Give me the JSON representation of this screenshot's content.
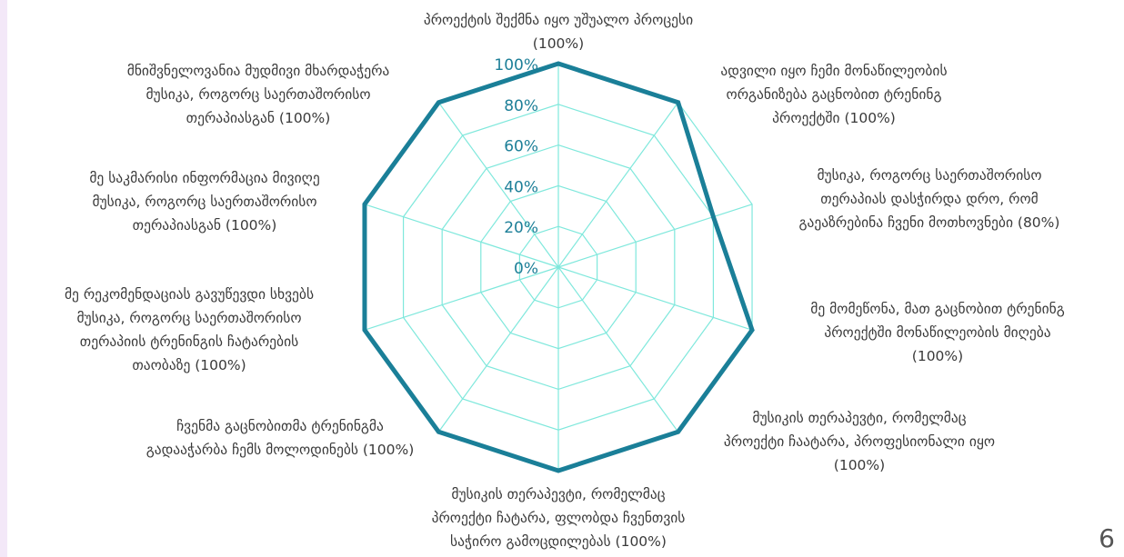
{
  "chart_data": {
    "type": "radar",
    "title": "",
    "rlim": [
      0,
      100
    ],
    "ticks": [
      "0%",
      "20%",
      "40%",
      "60%",
      "80%",
      "100%"
    ],
    "tick_values": [
      0,
      20,
      40,
      60,
      80,
      100
    ],
    "grid": true,
    "axes": [
      {
        "lines": [
          "პროექტის შექმნა იყო უშუალო პროცესი",
          "(100%)"
        ],
        "value": 100
      },
      {
        "lines": [
          "ადვილი იყო ჩემი მონაწილეობის",
          "ორგანიზება გაცნობით ტრენინგ",
          "პროექტში (100%)"
        ],
        "value": 100
      },
      {
        "lines": [
          "მუსიკა, როგორც საერთაშორისო",
          "თერაპიას დასჭირდა დრო, რომ",
          "გაეაზრებინა ჩვენი მოთხოვნები (80%)"
        ],
        "value": 80
      },
      {
        "lines": [
          "მე მომეწონა, მათ გაცნობით ტრენინგ",
          "პროექტში მონაწილეობის მიღება",
          "(100%)"
        ],
        "value": 100
      },
      {
        "lines": [
          "მუსიკის თერაპევტი, რომელმაც",
          "პროექტი ჩაატარა, პროფესიონალი იყო",
          "(100%)"
        ],
        "value": 100
      },
      {
        "lines": [
          "მუსიკის თერაპევტი, რომელმაც",
          "პროექტი ჩატარა, ფლობდა ჩვენთვის",
          "საჭირო გამოცდილებას (100%)"
        ],
        "value": 100
      },
      {
        "lines": [
          "ჩვენმა გაცნობითმა ტრენინგმა",
          "გადააჭარბა ჩემს მოლოდინებს (100%)"
        ],
        "value": 100
      },
      {
        "lines": [
          "მე რეკომენდაციას გავუწევდი სხვებს",
          "მუსიკა, როგორც საერთაშორისო",
          "თერაპიის ტრენინგის ჩატარების",
          "თაობაზე (100%)"
        ],
        "value": 100
      },
      {
        "lines": [
          "მე საკმარისი ინფორმაცია მივიღე",
          "მუსიკა, როგორც საერთაშორისო",
          "თერაპიასგან (100%)"
        ],
        "value": 100
      },
      {
        "lines": [
          "მნიშვნელოვანია მუდმივი მხარდაჭერა",
          "მუსიკა, როგორც საერთაშორისო",
          "თერაპიასგან (100%)"
        ],
        "value": 100
      }
    ],
    "colors": {
      "series": "#1a7f98",
      "grid": "#7fe8dc"
    }
  },
  "page_number": "6"
}
